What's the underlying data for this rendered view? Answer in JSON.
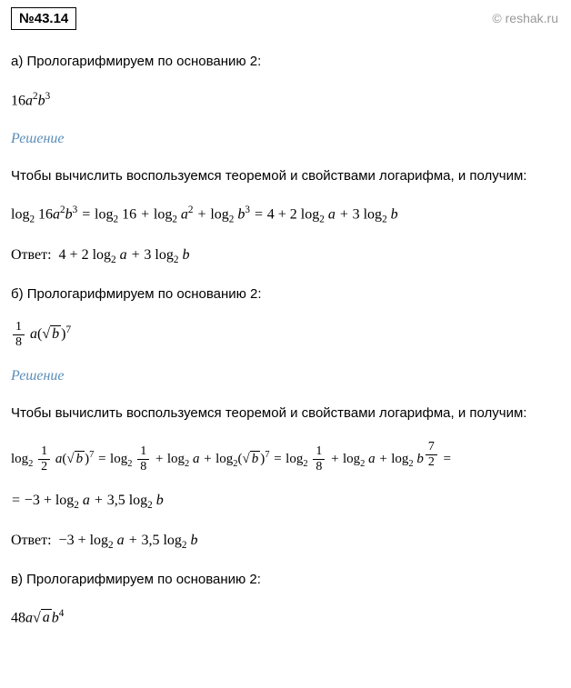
{
  "header": {
    "problem_number": "№43.14"
  },
  "watermark": "© reshak.ru",
  "part_a": {
    "prompt": "а) Прологарифмируем по основанию 2:",
    "expression": "16a²b³",
    "solution_label": "Решение",
    "solution_text": "Чтобы вычислить воспользуемся теоремой и свойствами логарифма, и получим:",
    "solution_eq": "log₂ 16a²b³ = log₂ 16 + log₂ a² + log₂ b³ = 4 + 2 log₂ a + 3 log₂ b",
    "answer_label": "Ответ:",
    "answer": "4 + 2 log₂ a + 3 log₂ b"
  },
  "part_b": {
    "prompt": "б) Прологарифмируем по основанию 2:",
    "frac_num": "1",
    "frac_den": "8",
    "expr_var": "a",
    "expr_root": "b",
    "expr_power": "7",
    "solution_label": "Решение",
    "solution_text": "Чтобы вычислить воспользуемся теоремой и свойствами логарифма, и получим:",
    "line1_part1": "log",
    "line1_frac1_num": "1",
    "line1_frac1_den": "2",
    "line1_frac2_num": "1",
    "line1_frac2_den": "8",
    "line1_frac3_num": "7",
    "line1_frac3_den": "2",
    "line2": "= −3 + log₂ a + 3,5 log₂ b",
    "answer_label": "Ответ:",
    "answer": "−3 + log₂ a + 3,5 log₂ b"
  },
  "part_c": {
    "prompt": "в) Прологарифмируем по основанию 2:",
    "expr_coeff": "48",
    "expr_var1": "a",
    "expr_root": "a",
    "expr_var2": "b",
    "expr_power": "4"
  },
  "colors": {
    "text": "#000000",
    "label": "#5b8db8",
    "watermark": "#999999",
    "background": "#ffffff"
  }
}
